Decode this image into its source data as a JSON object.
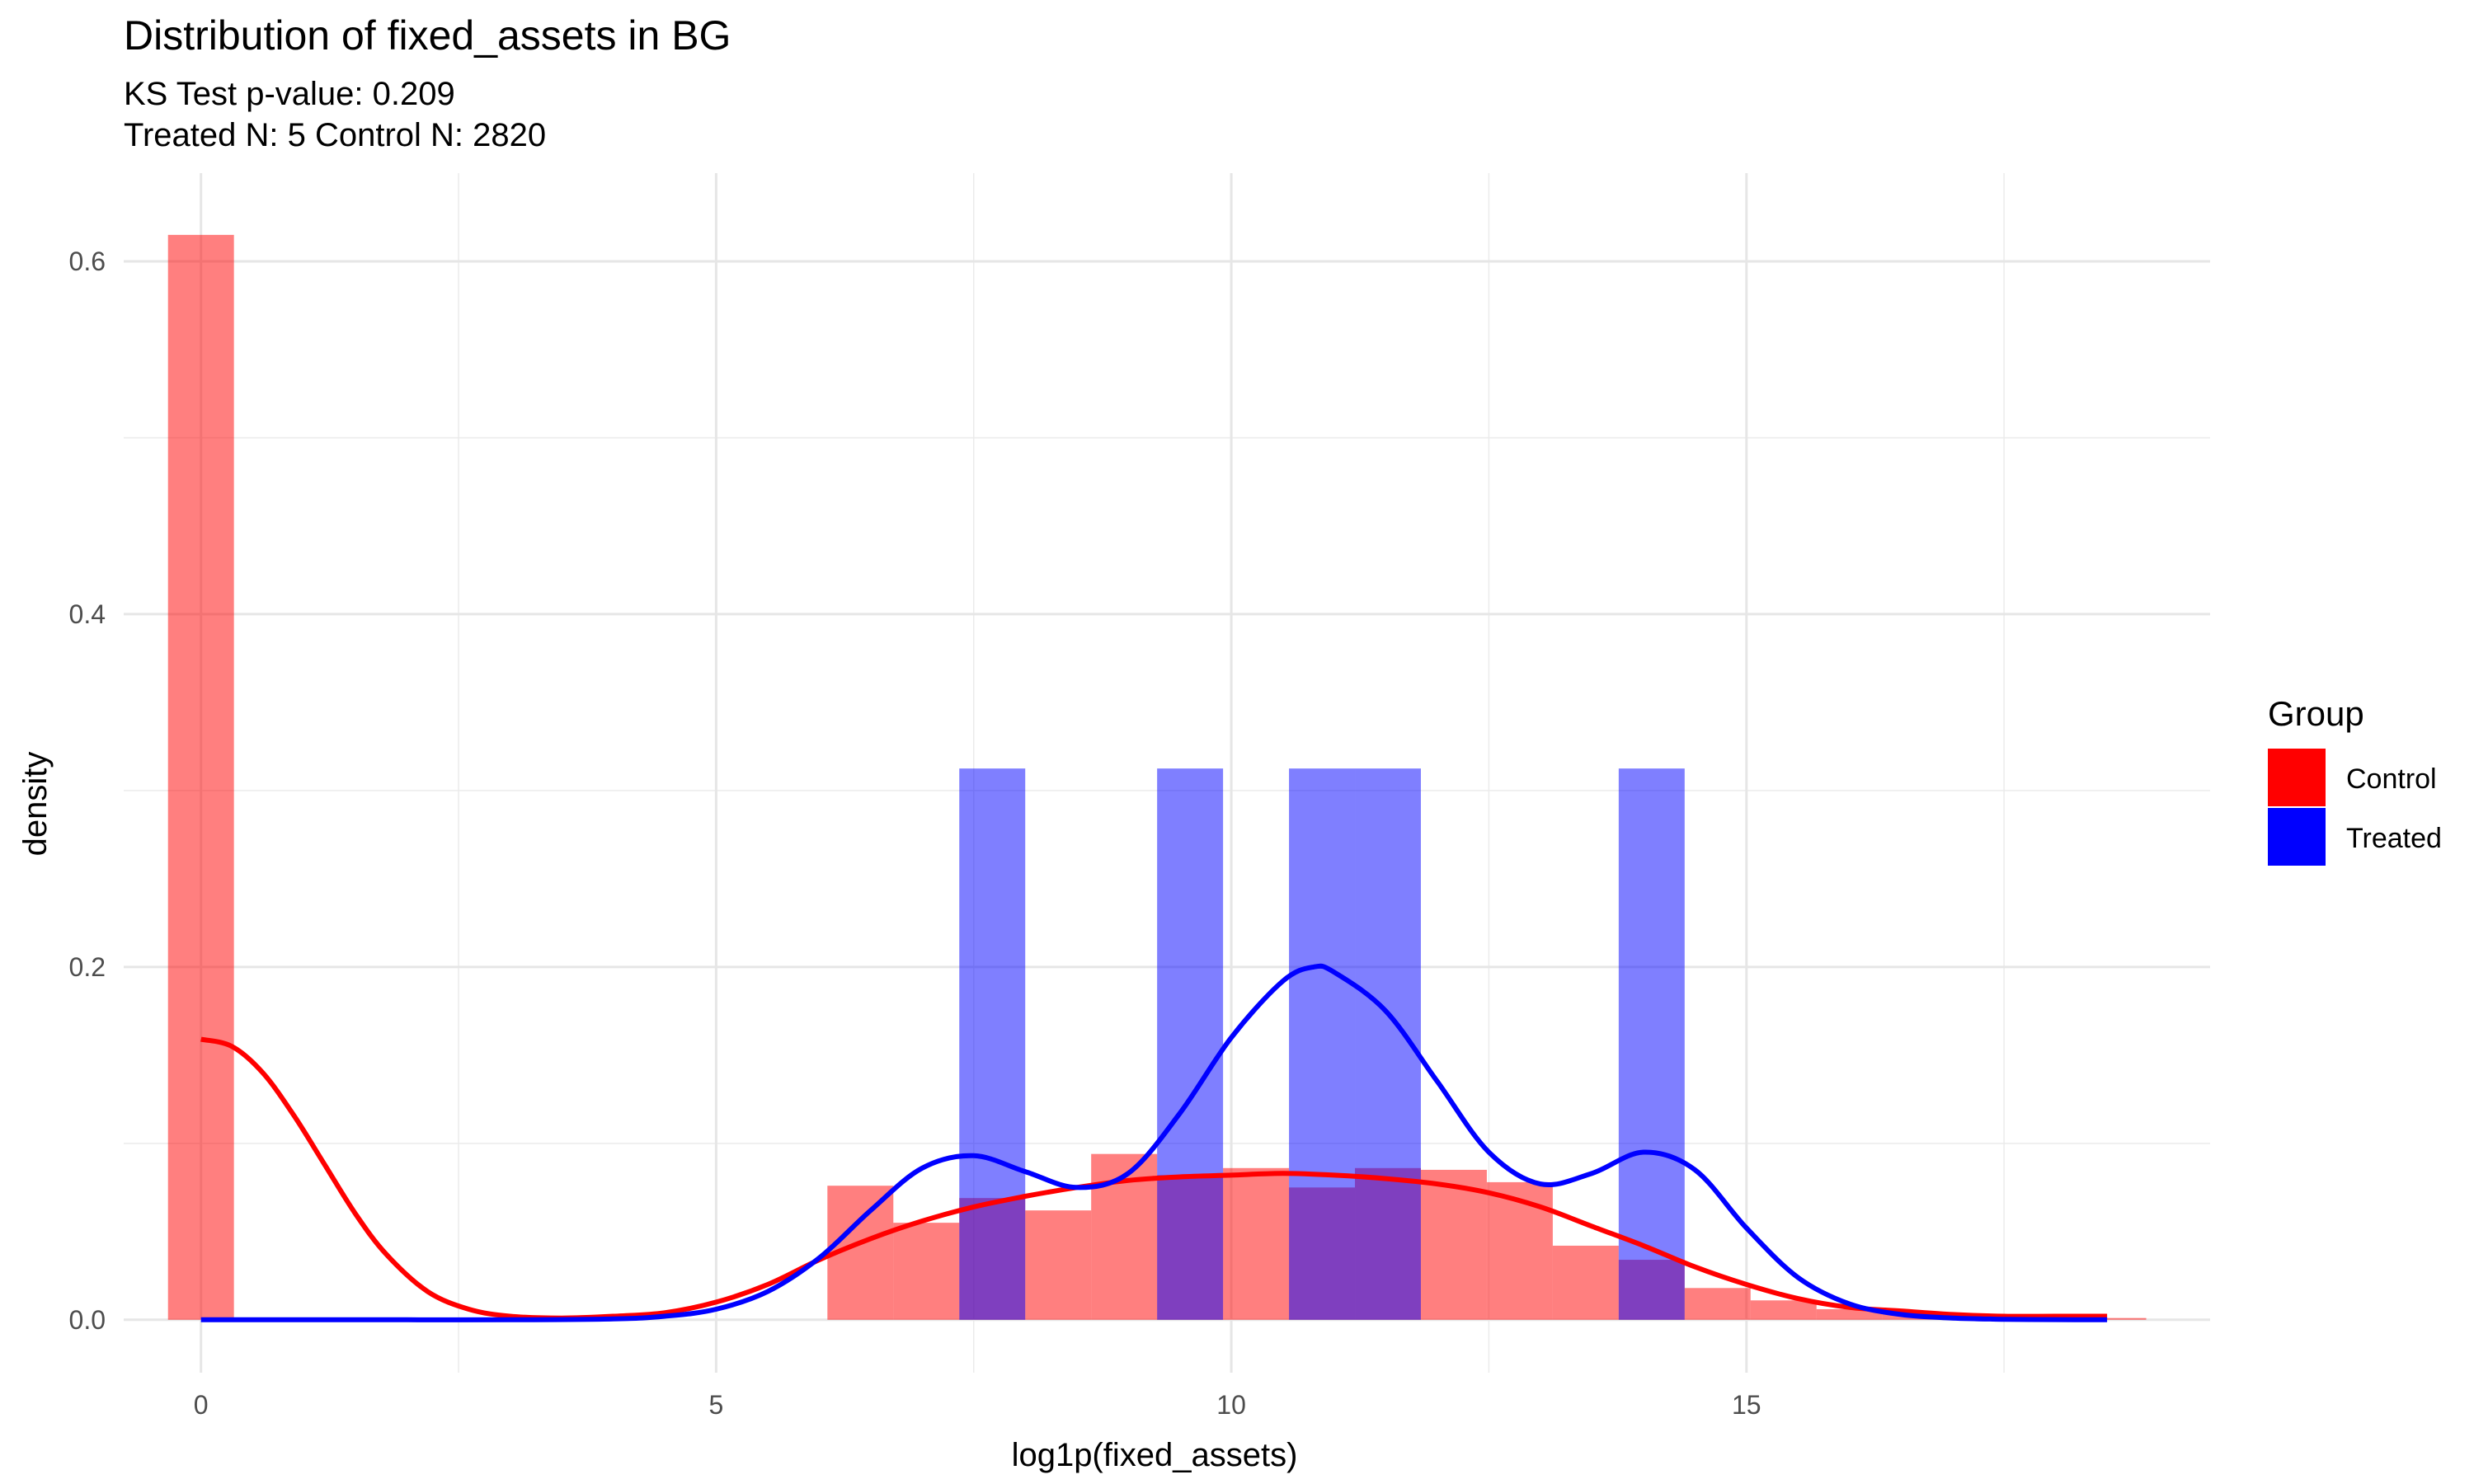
{
  "chart_data": {
    "type": "histogram+density",
    "title": "Distribution of fixed_assets in BG",
    "subtitle_lines": [
      "KS Test p-value: 0.209",
      "Treated N: 5 Control N: 2820"
    ],
    "xlabel": "log1p(fixed_assets)",
    "ylabel": "density",
    "xlim": [
      -0.75,
      19.5
    ],
    "ylim": [
      -0.03,
      0.65
    ],
    "x_ticks": [
      0,
      5,
      10,
      15
    ],
    "y_ticks": [
      0.0,
      0.2,
      0.4,
      0.6
    ],
    "x_tick_labels": [
      "0",
      "5",
      "10",
      "15"
    ],
    "y_tick_labels": [
      "0.0",
      "0.2",
      "0.4",
      "0.6"
    ],
    "grid": true,
    "legend": {
      "title": "Group",
      "placement": "right",
      "entries": [
        {
          "label": "Control",
          "color": "#ff0000"
        },
        {
          "label": "Treated",
          "color": "#0000ff"
        }
      ]
    },
    "bin_width": 0.64,
    "series": [
      {
        "name": "Control",
        "color": "#ff0000",
        "histogram": {
          "x_centers": [
            0.0,
            6.4,
            7.04,
            7.68,
            8.32,
            8.96,
            9.6,
            10.24,
            10.88,
            11.52,
            12.16,
            12.8,
            13.44,
            14.08,
            14.72,
            15.36,
            16.0,
            16.64,
            17.28,
            17.92,
            18.56
          ],
          "density": [
            0.615,
            0.076,
            0.055,
            0.069,
            0.062,
            0.094,
            0.082,
            0.086,
            0.075,
            0.086,
            0.085,
            0.078,
            0.042,
            0.034,
            0.018,
            0.011,
            0.006,
            0.004,
            0.003,
            0.002,
            0.001
          ]
        },
        "density_curve": {
          "x": [
            0,
            0.3,
            0.6,
            0.9,
            1.2,
            1.5,
            1.8,
            2.2,
            2.6,
            3.0,
            3.5,
            4.0,
            4.5,
            5.0,
            5.5,
            6.0,
            6.5,
            7.0,
            7.5,
            8.0,
            8.5,
            9.0,
            9.5,
            10.0,
            10.5,
            11.0,
            11.5,
            12.0,
            12.5,
            13.0,
            13.5,
            14.0,
            14.5,
            15.0,
            15.5,
            16.0,
            16.5,
            17.0,
            17.5,
            18.0,
            18.5
          ],
          "y": [
            0.159,
            0.155,
            0.14,
            0.116,
            0.088,
            0.06,
            0.037,
            0.016,
            0.006,
            0.002,
            0.001,
            0.002,
            0.004,
            0.01,
            0.02,
            0.034,
            0.046,
            0.056,
            0.064,
            0.07,
            0.075,
            0.079,
            0.081,
            0.082,
            0.083,
            0.082,
            0.08,
            0.077,
            0.072,
            0.064,
            0.053,
            0.042,
            0.03,
            0.02,
            0.012,
            0.007,
            0.005,
            0.003,
            0.002,
            0.002,
            0.002
          ]
        }
      },
      {
        "name": "Treated",
        "color": "#0000ff",
        "histogram": {
          "x_centers": [
            7.68,
            9.6,
            10.88,
            11.52,
            14.08
          ],
          "density": [
            0.3125,
            0.3125,
            0.3125,
            0.3125,
            0.3125
          ]
        },
        "density_curve": {
          "x": [
            0,
            1,
            2,
            3,
            4,
            4.5,
            5.0,
            5.5,
            6.0,
            6.5,
            7.0,
            7.5,
            8.0,
            8.5,
            9.0,
            9.5,
            10.0,
            10.5,
            10.8,
            11.0,
            11.5,
            12.0,
            12.5,
            13.0,
            13.5,
            14.0,
            14.5,
            15.0,
            15.5,
            16.0,
            16.5,
            17.0,
            17.5,
            18.0,
            18.5
          ],
          "y": [
            0,
            0,
            0,
            0,
            0.0005,
            0.002,
            0.006,
            0.016,
            0.035,
            0.062,
            0.086,
            0.093,
            0.084,
            0.075,
            0.083,
            0.117,
            0.16,
            0.192,
            0.2,
            0.197,
            0.175,
            0.135,
            0.095,
            0.077,
            0.083,
            0.095,
            0.085,
            0.052,
            0.024,
            0.009,
            0.003,
            0.001,
            0.0003,
            0.0001,
            0
          ]
        }
      }
    ]
  }
}
